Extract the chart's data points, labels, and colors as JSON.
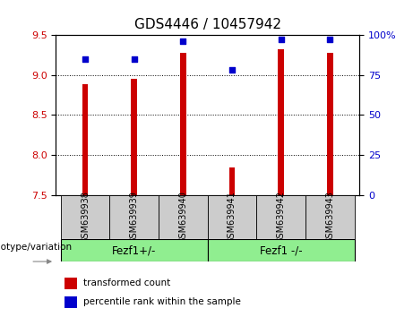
{
  "title": "GDS4446 / 10457942",
  "samples": [
    "GSM639938",
    "GSM639939",
    "GSM639940",
    "GSM639941",
    "GSM639942",
    "GSM639943"
  ],
  "transformed_count": [
    8.88,
    8.95,
    9.28,
    7.84,
    9.32,
    9.28
  ],
  "percentile_rank": [
    85,
    85,
    96,
    78,
    97,
    97
  ],
  "ylim_left": [
    7.5,
    9.5
  ],
  "ylim_right": [
    0,
    100
  ],
  "yticks_left": [
    7.5,
    8.0,
    8.5,
    9.0,
    9.5
  ],
  "yticks_right": [
    0,
    25,
    50,
    75,
    100
  ],
  "ytick_labels_right": [
    "0",
    "25",
    "50",
    "75",
    "100%"
  ],
  "bar_color": "#cc0000",
  "square_color": "#0000cc",
  "bg_color_plot": "#ffffff",
  "sample_bg_color": "#cccccc",
  "group_color": "#90ee90",
  "groups": [
    {
      "label": "Fezf1+/-",
      "start": 0,
      "end": 2
    },
    {
      "label": "Fezf1 -/-",
      "start": 3,
      "end": 5
    }
  ],
  "xlabel_row": "genotype/variation",
  "legend_items": [
    {
      "label": "transformed count",
      "color": "#cc0000"
    },
    {
      "label": "percentile rank within the sample",
      "color": "#0000cc"
    }
  ],
  "bar_width": 0.12,
  "tick_label_color_left": "#cc0000",
  "tick_label_color_right": "#0000cc",
  "title_fontsize": 11,
  "tick_fontsize": 8,
  "sample_label_fontsize": 7,
  "group_label_fontsize": 8.5,
  "xlabel_fontsize": 7.5,
  "grid_lines": [
    9.0,
    8.5,
    8.0
  ]
}
